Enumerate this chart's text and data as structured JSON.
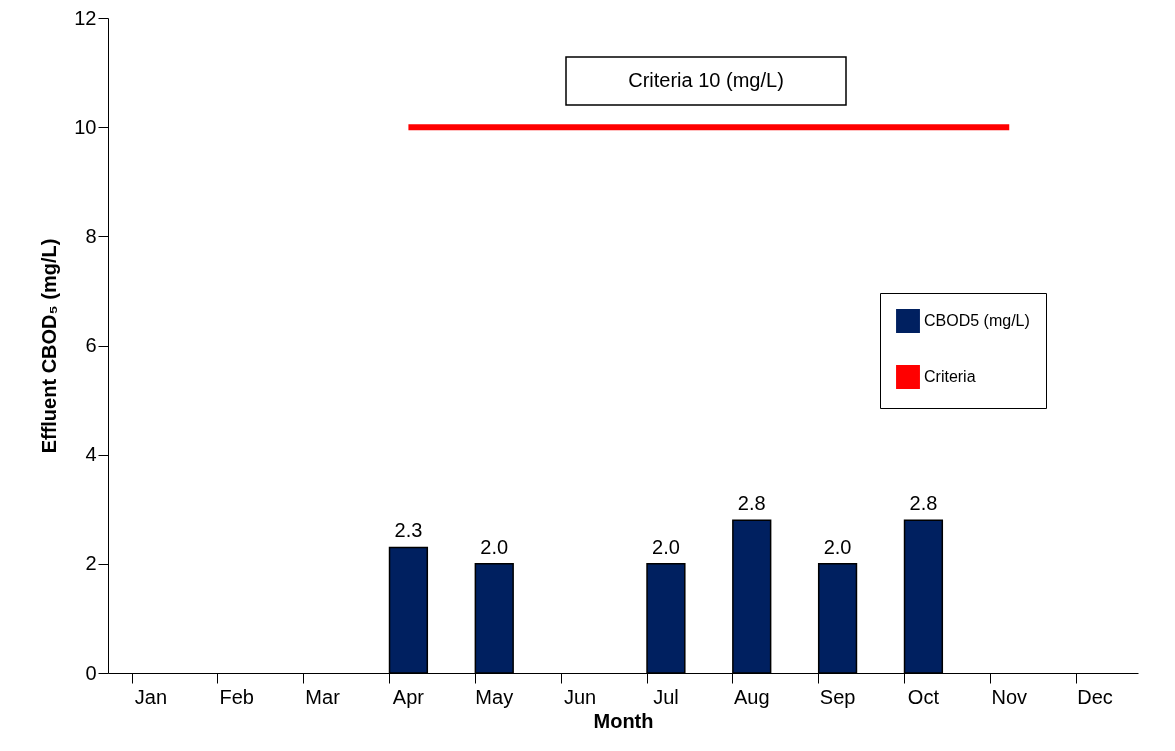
{
  "chart_data": {
    "type": "bar",
    "xlabel": "Month",
    "ylabel": "Effluent CBOD₅ (mg/L)",
    "categories": [
      "Jan",
      "Feb",
      "Mar",
      "Apr",
      "May",
      "Jun",
      "Jul",
      "Aug",
      "Sep",
      "Oct",
      "Nov",
      "Dec"
    ],
    "series": [
      {
        "name": "CBOD5 (mg/L)",
        "color": "#002060",
        "values": [
          null,
          null,
          null,
          2.3,
          2.0,
          null,
          2.0,
          2.8,
          2.0,
          2.8,
          null,
          null
        ],
        "value_labels": [
          null,
          null,
          null,
          "2.3",
          "2.0",
          null,
          "2.0",
          "2.8",
          "2.0",
          "2.8",
          null,
          null
        ]
      },
      {
        "name": "Criteria",
        "type": "line",
        "color": "#ff0000",
        "values": [
          null,
          null,
          null,
          10,
          10,
          10,
          10,
          10,
          10,
          10,
          10,
          null
        ]
      }
    ],
    "annotations": [
      "Criteria 10 (mg/L)"
    ],
    "ylim": [
      0,
      12
    ],
    "yticks": [
      0,
      2,
      4,
      6,
      8,
      10,
      12
    ],
    "grid": false,
    "legend": "right",
    "marker": "none",
    "line_style": "solid"
  }
}
